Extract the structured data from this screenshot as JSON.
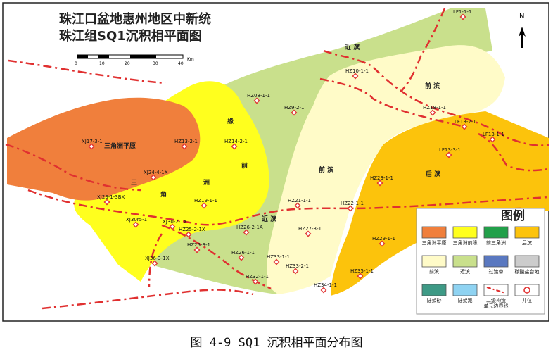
{
  "map": {
    "title_line1": "珠江口盆地惠州地区中新统",
    "title_line2": "珠江组SQ1沉积相平面图",
    "north_label": "N",
    "scale": {
      "ticks": [
        "0",
        "10",
        "20",
        "30",
        "40"
      ],
      "unit": "Km"
    }
  },
  "facies_labels": {
    "delta_plain": "三角洲平原",
    "front_delta_a": "三",
    "front_delta_b": "角",
    "delta_front_v1": "缘",
    "delta_front_v2": "前",
    "delta_front_v3": "洲",
    "nearshore_top": "近 滨",
    "nearshore_mid": "近 滨",
    "foreshore_right": "前 滨",
    "foreshore_mid": "前 滨",
    "backshore": "后 滨"
  },
  "wells": [
    {
      "id": "LF1-1-1"
    },
    {
      "id": "HZ10-1-1"
    },
    {
      "id": "HZ08-1-1"
    },
    {
      "id": "HZ9-2-1"
    },
    {
      "id": "HZ18-1-1"
    },
    {
      "id": "LF13-2-1"
    },
    {
      "id": "LF13-1-1"
    },
    {
      "id": "LF13-3-1"
    },
    {
      "id": "XJ17-3-1"
    },
    {
      "id": "HZ13-2-1"
    },
    {
      "id": "HZ14-2-1"
    },
    {
      "id": "XJ24-4-1X"
    },
    {
      "id": "XJ23-1-3BX"
    },
    {
      "id": "HZ19-1-1"
    },
    {
      "id": "HZ21-1-1"
    },
    {
      "id": "HZ22-1-1"
    },
    {
      "id": "HZ23-1-1"
    },
    {
      "id": "XJ30r5-1"
    },
    {
      "id": "XJ30-2-1X"
    },
    {
      "id": "HZ25-2-1X"
    },
    {
      "id": "HZ26-2-1A"
    },
    {
      "id": "HZ27-3-1"
    },
    {
      "id": "HZ25-3-1"
    },
    {
      "id": "HZ26-1-1"
    },
    {
      "id": "HZ33-1-1"
    },
    {
      "id": "HZ33-2-1"
    },
    {
      "id": "HZ29-1-1"
    },
    {
      "id": "XJ36-3-1X"
    },
    {
      "id": "HZ32-1-1"
    },
    {
      "id": "HZ35-1-1"
    },
    {
      "id": "HZ34-1-1"
    }
  ],
  "legend": {
    "title": "图例",
    "items": [
      {
        "label": "三角洲平原",
        "color": "#f07f3c",
        "icon": "swatch"
      },
      {
        "label": "三角洲前缘",
        "color": "#ffff1e",
        "icon": "swatch"
      },
      {
        "label": "前三角洲",
        "color": "#22a04a",
        "icon": "swatch"
      },
      {
        "label": "后滨",
        "color": "#fcc30c",
        "icon": "swatch"
      },
      {
        "label": "前滨",
        "color": "#fffbc8",
        "icon": "swatch"
      },
      {
        "label": "近滨",
        "color": "#c9e08c",
        "icon": "swatch"
      },
      {
        "label": "过渡带",
        "color": "#5a78c0",
        "icon": "swatch"
      },
      {
        "label": "碳酸盐台地",
        "color": "#cccccc",
        "icon": "swatch"
      },
      {
        "label": "陆架砂",
        "color": "#3e9a86",
        "icon": "swatch"
      },
      {
        "label": "陆架泥",
        "color": "#8fd3f2",
        "icon": "swatch"
      },
      {
        "label": "二级构造单元边界线",
        "color": "#e03030",
        "icon": "boundary-line-icon"
      },
      {
        "label": "井位",
        "color": "#e03030",
        "icon": "well-circle-icon"
      }
    ]
  },
  "caption": "图 4-9 SQ1 沉积相平面分布图"
}
